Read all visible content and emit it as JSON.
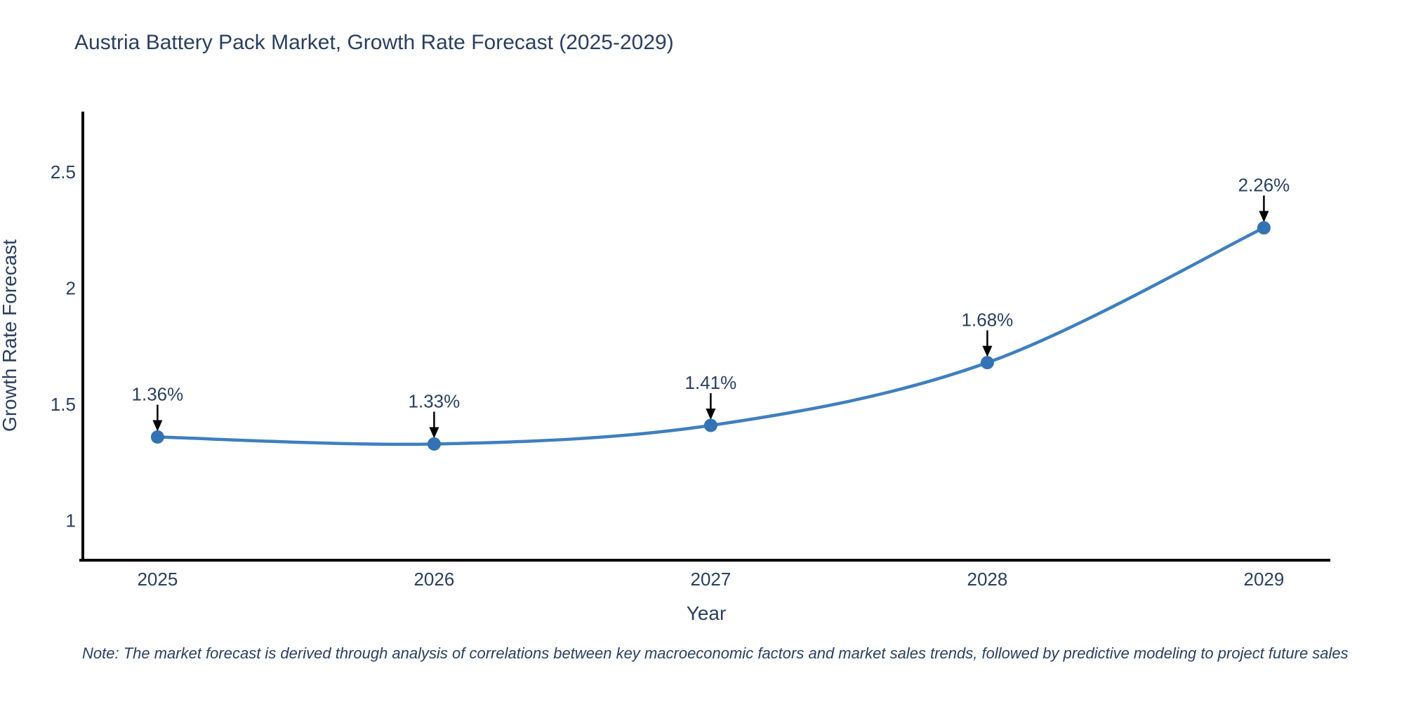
{
  "title": "Austria Battery Pack Market, Growth Rate Forecast (2025-2029)",
  "note": "Note: The market forecast is derived through analysis of correlations between key macroeconomic factors and market sales trends, followed by predictive modeling to project future sales",
  "chart_data": {
    "type": "line",
    "title": "Austria Battery Pack Market, Growth Rate Forecast (2025-2029)",
    "xlabel": "Year",
    "ylabel": "Growth Rate Forecast",
    "x": [
      2025,
      2026,
      2027,
      2028,
      2029
    ],
    "series": [
      {
        "name": "Growth Rate Forecast",
        "values": [
          1.36,
          1.33,
          1.41,
          1.68,
          2.26
        ],
        "point_labels": [
          "1.36%",
          "1.33%",
          "1.41%",
          "1.68%",
          "2.26%"
        ]
      }
    ],
    "x_tick_labels": [
      "2025",
      "2026",
      "2027",
      "2028",
      "2029"
    ],
    "y_ticks": [
      1,
      1.5,
      2,
      2.5
    ],
    "y_tick_labels": [
      "1",
      "1.5",
      "2",
      "2.5"
    ],
    "xlim": [
      2024.73,
      2029.24
    ],
    "ylim": [
      0.83,
      2.76
    ],
    "grid": false,
    "legend": "none",
    "line_shape": "spline",
    "colors": {
      "line": "#3f7fbf",
      "marker": "#3373b3",
      "arrow": "#000000",
      "text": "#2a3f5f",
      "axis": "#000000",
      "background": "#ffffff"
    }
  }
}
